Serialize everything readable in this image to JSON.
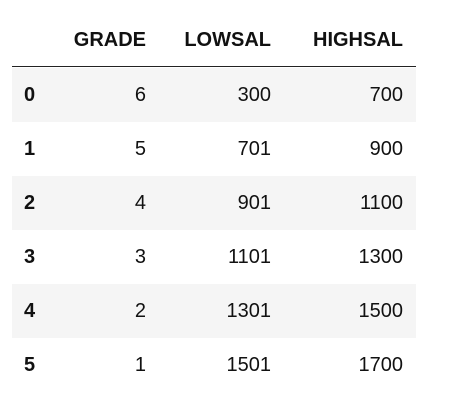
{
  "table": {
    "columns": [
      "GRADE",
      "LOWSAL",
      "HIGHSAL"
    ],
    "index": [
      0,
      1,
      2,
      3,
      4,
      5
    ],
    "rows": [
      [
        6,
        300,
        700
      ],
      [
        5,
        701,
        900
      ],
      [
        4,
        901,
        1100
      ],
      [
        3,
        1101,
        1300
      ],
      [
        2,
        1301,
        1500
      ],
      [
        1,
        1501,
        1700
      ]
    ]
  }
}
